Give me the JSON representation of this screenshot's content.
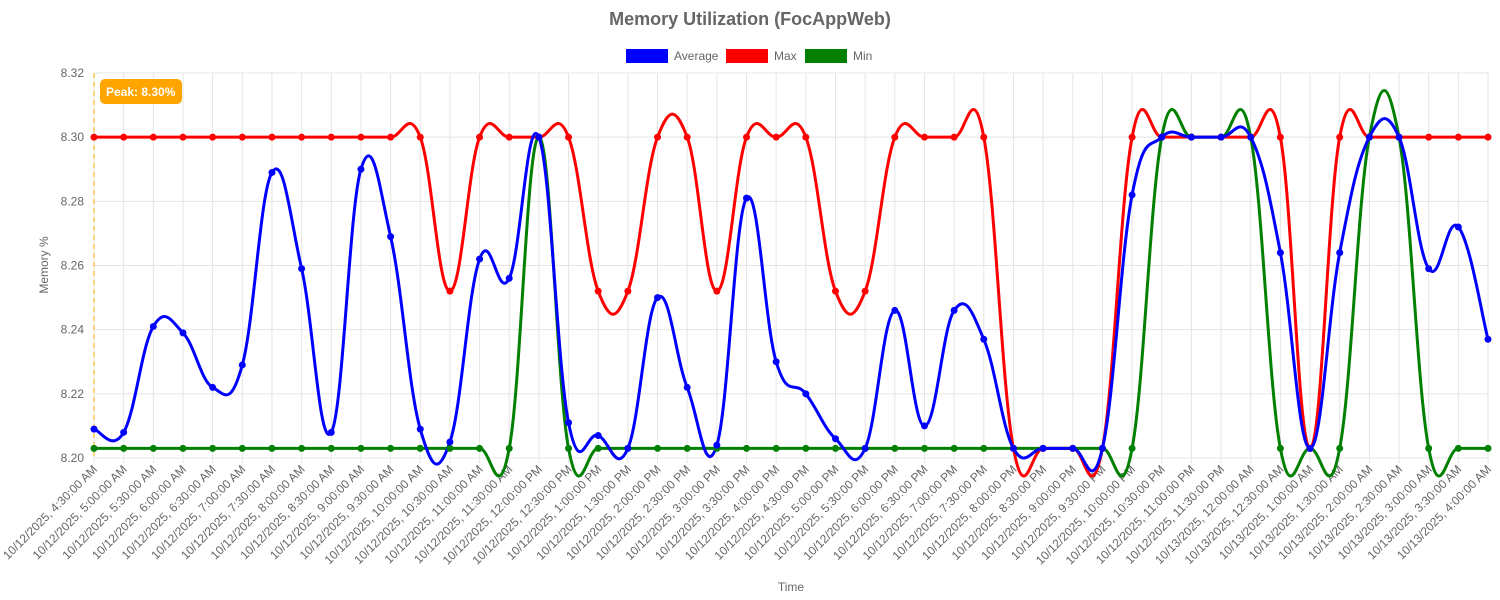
{
  "chart_data": {
    "type": "line",
    "title": "Memory Utilization (FocAppWeb)",
    "xlabel": "Time",
    "ylabel": "Memory %",
    "ylim": [
      8.2,
      8.32
    ],
    "y_ticks": [
      "8.20",
      "8.22",
      "8.24",
      "8.26",
      "8.28",
      "8.30",
      "8.32"
    ],
    "grid": true,
    "legend_position": "top",
    "categories": [
      "10/12/2025, 4:30:00 AM",
      "10/12/2025, 5:00:00 AM",
      "10/12/2025, 5:30:00 AM",
      "10/12/2025, 6:00:00 AM",
      "10/12/2025, 6:30:00 AM",
      "10/12/2025, 7:00:00 AM",
      "10/12/2025, 7:30:00 AM",
      "10/12/2025, 8:00:00 AM",
      "10/12/2025, 8:30:00 AM",
      "10/12/2025, 9:00:00 AM",
      "10/12/2025, 9:30:00 AM",
      "10/12/2025, 10:00:00 AM",
      "10/12/2025, 10:30:00 AM",
      "10/12/2025, 11:00:00 AM",
      "10/12/2025, 11:30:00 AM",
      "10/12/2025, 12:00:00 PM",
      "10/12/2025, 12:30:00 PM",
      "10/12/2025, 1:00:00 PM",
      "10/12/2025, 1:30:00 PM",
      "10/12/2025, 2:00:00 PM",
      "10/12/2025, 2:30:00 PM",
      "10/12/2025, 3:00:00 PM",
      "10/12/2025, 3:30:00 PM",
      "10/12/2025, 4:00:00 PM",
      "10/12/2025, 4:30:00 PM",
      "10/12/2025, 5:00:00 PM",
      "10/12/2025, 5:30:00 PM",
      "10/12/2025, 6:00:00 PM",
      "10/12/2025, 6:30:00 PM",
      "10/12/2025, 7:00:00 PM",
      "10/12/2025, 7:30:00 PM",
      "10/12/2025, 8:00:00 PM",
      "10/12/2025, 8:30:00 PM",
      "10/12/2025, 9:00:00 PM",
      "10/12/2025, 9:30:00 PM",
      "10/12/2025, 10:00:00 PM",
      "10/12/2025, 10:30:00 PM",
      "10/12/2025, 11:00:00 PM",
      "10/12/2025, 11:30:00 PM",
      "10/13/2025, 12:00:00 AM",
      "10/13/2025, 12:30:00 AM",
      "10/13/2025, 1:00:00 AM",
      "10/13/2025, 1:30:00 AM",
      "10/13/2025, 2:00:00 AM",
      "10/13/2025, 2:30:00 AM",
      "10/13/2025, 3:00:00 AM",
      "10/13/2025, 3:30:00 AM",
      "10/13/2025, 4:00:00 AM"
    ],
    "series": [
      {
        "name": "Average",
        "color": "#0000ff",
        "values": [
          8.209,
          8.208,
          8.241,
          8.239,
          8.222,
          8.229,
          8.289,
          8.259,
          8.208,
          8.29,
          8.269,
          8.209,
          8.205,
          8.262,
          8.256,
          8.3,
          8.211,
          8.207,
          8.203,
          8.25,
          8.222,
          8.204,
          8.281,
          8.23,
          8.22,
          8.206,
          8.203,
          8.246,
          8.21,
          8.246,
          8.237,
          8.203,
          8.203,
          8.203,
          8.203,
          8.282,
          8.3,
          8.3,
          8.3,
          8.3,
          8.264,
          8.203,
          8.264,
          8.3,
          8.3,
          8.259,
          8.272,
          8.237
        ]
      },
      {
        "name": "Max",
        "color": "#ff0000",
        "values": [
          8.3,
          8.3,
          8.3,
          8.3,
          8.3,
          8.3,
          8.3,
          8.3,
          8.3,
          8.3,
          8.3,
          8.3,
          8.252,
          8.3,
          8.3,
          8.3,
          8.3,
          8.252,
          8.252,
          8.3,
          8.3,
          8.252,
          8.3,
          8.3,
          8.3,
          8.252,
          8.252,
          8.3,
          8.3,
          8.3,
          8.3,
          8.203,
          8.203,
          8.203,
          8.203,
          8.3,
          8.3,
          8.3,
          8.3,
          8.3,
          8.3,
          8.203,
          8.3,
          8.3,
          8.3,
          8.3,
          8.3,
          8.3
        ]
      },
      {
        "name": "Min",
        "color": "#008000",
        "values": [
          8.203,
          8.203,
          8.203,
          8.203,
          8.203,
          8.203,
          8.203,
          8.203,
          8.203,
          8.203,
          8.203,
          8.203,
          8.203,
          8.203,
          8.203,
          8.3,
          8.203,
          8.203,
          8.203,
          8.203,
          8.203,
          8.203,
          8.203,
          8.203,
          8.203,
          8.203,
          8.203,
          8.203,
          8.203,
          8.203,
          8.203,
          8.203,
          8.203,
          8.203,
          8.203,
          8.203,
          8.3,
          8.3,
          8.3,
          8.3,
          8.203,
          8.203,
          8.203,
          8.3,
          8.3,
          8.203,
          8.203,
          8.203
        ]
      }
    ],
    "annotations": [
      {
        "label": "Peak: 8.30%",
        "category_index": 0,
        "color": "#ffa500",
        "line_style": "dashed"
      }
    ]
  }
}
